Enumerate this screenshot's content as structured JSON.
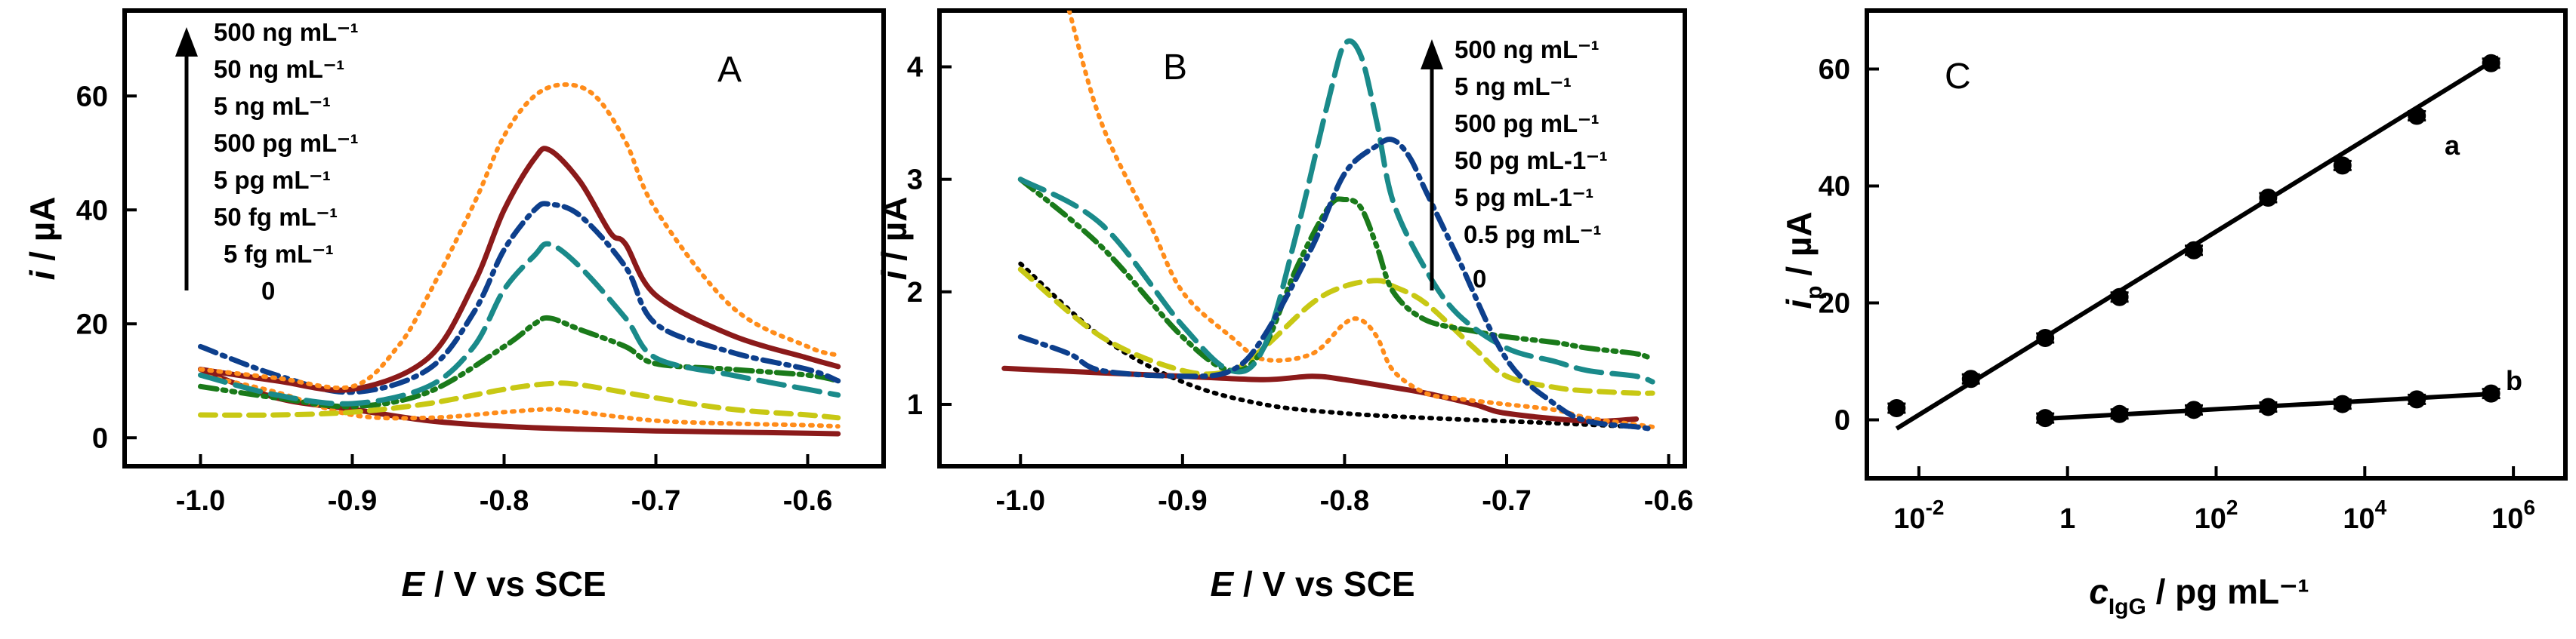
{
  "figure": {
    "colors": {
      "c0": "#000000",
      "c5fg": "#8b1a1a",
      "c50fg": "#ff8c1a",
      "c5pg": "#c8c814",
      "c500pg": "#1a7a1a",
      "c5ng": "#1a8a8a",
      "c50ng": "#0d3f8c",
      "c500ng": "#ff8c1a",
      "bPointFive": "#000000"
    }
  },
  "chart_data": [
    {
      "id": "A",
      "type": "line",
      "panel_label": "A",
      "xlabel_italic": "E",
      "xlabel_rest": " / V vs SCE",
      "ylabel_italic": "i",
      "ylabel_rest": " / µA",
      "xlim": [
        -1.05,
        -0.55
      ],
      "ylim": [
        -5,
        75
      ],
      "xticks": [
        -1.0,
        -0.9,
        -0.8,
        -0.7,
        -0.6
      ],
      "xtick_labels": [
        "-1.0",
        "-0.9",
        "-0.8",
        "-0.7",
        "-0.6"
      ],
      "yticks": [
        0,
        20,
        40,
        60
      ],
      "ytick_labels": [
        "0",
        "20",
        "40",
        "60"
      ],
      "legend": [
        "500 ng mL⁻¹",
        "50 ng mL⁻¹",
        "5 ng mL⁻¹",
        "500 pg mL⁻¹",
        "5 pg mL⁻¹",
        "50 fg mL⁻¹",
        "5 fg mL⁻¹",
        "0"
      ],
      "series": [
        {
          "name": "0",
          "style": "solid",
          "color_key": "c5fg",
          "x": [
            -1.0,
            -0.95,
            -0.9,
            -0.85,
            -0.8,
            -0.75,
            -0.7,
            -0.65,
            -0.6,
            -0.58
          ],
          "y": [
            12,
            7,
            5,
            3,
            2,
            1.5,
            1.2,
            1,
            0.8,
            0.7
          ]
        },
        {
          "name": "5 fg mL⁻¹",
          "style": "dot",
          "color_key": "c50fg",
          "x": [
            -1.0,
            -0.95,
            -0.9,
            -0.85,
            -0.8,
            -0.77,
            -0.75,
            -0.7,
            -0.65,
            -0.6,
            -0.58
          ],
          "y": [
            11,
            8,
            4,
            3.5,
            4.5,
            5,
            4.5,
            3,
            2.5,
            2.2,
            2
          ]
        },
        {
          "name": "50 fg mL⁻¹",
          "style": "dash",
          "color_key": "c5pg",
          "x": [
            -1.0,
            -0.95,
            -0.9,
            -0.85,
            -0.8,
            -0.77,
            -0.75,
            -0.7,
            -0.65,
            -0.6,
            -0.58
          ],
          "y": [
            4,
            4,
            4.5,
            6,
            8.5,
            9.5,
            9.3,
            7,
            5,
            4,
            3.5
          ]
        },
        {
          "name": "5 pg mL⁻¹",
          "style": "dashdotdot",
          "color_key": "c500pg",
          "x": [
            -1.0,
            -0.95,
            -0.9,
            -0.85,
            -0.8,
            -0.78,
            -0.77,
            -0.75,
            -0.72,
            -0.7,
            -0.65,
            -0.6,
            -0.58
          ],
          "y": [
            9,
            7,
            5.5,
            8,
            16,
            20,
            21,
            19,
            16,
            13,
            12,
            11,
            10
          ]
        },
        {
          "name": "500 pg mL⁻¹",
          "style": "longdash",
          "color_key": "c5ng",
          "x": [
            -1.0,
            -0.95,
            -0.9,
            -0.85,
            -0.82,
            -0.8,
            -0.78,
            -0.77,
            -0.75,
            -0.72,
            -0.7,
            -0.65,
            -0.6,
            -0.58
          ],
          "y": [
            11,
            7.5,
            6,
            9,
            16,
            26,
            32,
            34,
            30,
            21,
            14,
            11,
            8.5,
            7.5
          ]
        },
        {
          "name": "5 ng mL⁻¹",
          "style": "dashdot",
          "color_key": "c50ng",
          "x": [
            -1.0,
            -0.95,
            -0.9,
            -0.85,
            -0.82,
            -0.8,
            -0.78,
            -0.77,
            -0.75,
            -0.72,
            -0.7,
            -0.65,
            -0.6,
            -0.58
          ],
          "y": [
            16,
            11,
            8,
            12,
            22,
            33,
            40,
            41,
            39,
            30,
            20,
            15,
            12,
            10
          ]
        },
        {
          "name": "50 ng mL⁻¹",
          "style": "solid",
          "color_key": "c5fg",
          "x": [
            -1.0,
            -0.95,
            -0.9,
            -0.85,
            -0.82,
            -0.8,
            -0.78,
            -0.77,
            -0.75,
            -0.73,
            -0.72,
            -0.7,
            -0.65,
            -0.6,
            -0.58
          ],
          "y": [
            12,
            10,
            8.5,
            14,
            27,
            40,
            49,
            50.5,
            45,
            36,
            34,
            25,
            18,
            14,
            12.5
          ]
        },
        {
          "name": "500 ng mL⁻¹",
          "style": "dot",
          "color_key": "c500ng",
          "x": [
            -1.0,
            -0.95,
            -0.9,
            -0.87,
            -0.85,
            -0.82,
            -0.8,
            -0.78,
            -0.76,
            -0.74,
            -0.72,
            -0.7,
            -0.65,
            -0.6,
            -0.58
          ],
          "y": [
            12,
            10.5,
            9,
            16,
            25,
            41,
            53,
            60,
            62,
            60,
            52,
            40,
            23,
            16,
            14.5
          ]
        }
      ]
    },
    {
      "id": "B",
      "type": "line",
      "panel_label": "B",
      "xlabel_italic": "E",
      "xlabel_rest": " / V vs SCE",
      "ylabel_italic": "i",
      "ylabel_rest": " / µA",
      "xlim": [
        -1.05,
        -0.59
      ],
      "ylim": [
        0.45,
        4.5
      ],
      "xticks": [
        -1.0,
        -0.9,
        -0.8,
        -0.7,
        -0.6
      ],
      "xtick_labels": [
        "-1.0",
        "-0.9",
        "-0.8",
        "-0.7",
        "-0.6"
      ],
      "yticks": [
        1,
        2,
        3,
        4
      ],
      "ytick_labels": [
        "1",
        "2",
        "3",
        "4"
      ],
      "legend": [
        "500 ng mL⁻¹",
        "5 ng mL⁻¹",
        "500 pg mL⁻¹",
        "50 pg mL-1⁻¹",
        "5 pg mL-1⁻¹",
        "0.5 pg mL⁻¹",
        "0"
      ],
      "series": [
        {
          "name": "0",
          "style": "dot",
          "color_key": "bPointFive",
          "x": [
            -1.0,
            -0.95,
            -0.9,
            -0.85,
            -0.8,
            -0.75,
            -0.7,
            -0.65,
            -0.62
          ],
          "y": [
            2.25,
            1.6,
            1.2,
            1.0,
            0.92,
            0.88,
            0.85,
            0.82,
            0.8
          ]
        },
        {
          "name": "0.5 pg mL⁻¹",
          "style": "solid",
          "color_key": "c5fg",
          "x": [
            -1.01,
            -0.95,
            -0.9,
            -0.85,
            -0.82,
            -0.8,
            -0.77,
            -0.75,
            -0.72,
            -0.7,
            -0.65,
            -0.62
          ],
          "y": [
            1.32,
            1.28,
            1.25,
            1.22,
            1.25,
            1.22,
            1.15,
            1.1,
            1.0,
            0.92,
            0.85,
            0.87
          ]
        },
        {
          "name": "5 pg mL-1⁻¹",
          "style": "dot",
          "color_key": "c500ng",
          "x": [
            -0.97,
            -0.95,
            -0.92,
            -0.9,
            -0.87,
            -0.85,
            -0.82,
            -0.8,
            -0.79,
            -0.78,
            -0.77,
            -0.75,
            -0.73,
            -0.7,
            -0.67,
            -0.65,
            -0.62,
            -0.61
          ],
          "y": [
            4.5,
            3.5,
            2.6,
            2.0,
            1.6,
            1.4,
            1.45,
            1.72,
            1.75,
            1.6,
            1.3,
            1.1,
            1.05,
            1.0,
            0.95,
            0.88,
            0.82,
            0.8
          ]
        },
        {
          "name": "50 pg mL-1⁻¹",
          "style": "dash",
          "color_key": "c5pg",
          "x": [
            -1.0,
            -0.95,
            -0.9,
            -0.87,
            -0.85,
            -0.82,
            -0.8,
            -0.78,
            -0.77,
            -0.75,
            -0.72,
            -0.7,
            -0.67,
            -0.65,
            -0.62,
            -0.61
          ],
          "y": [
            2.2,
            1.6,
            1.3,
            1.3,
            1.5,
            1.9,
            2.05,
            2.1,
            2.05,
            1.9,
            1.5,
            1.25,
            1.15,
            1.12,
            1.1,
            1.1
          ]
        },
        {
          "name": "500 pg mL⁻¹",
          "style": "dashdotdot",
          "color_key": "c500pg",
          "x": [
            -1.0,
            -0.95,
            -0.9,
            -0.87,
            -0.85,
            -0.83,
            -0.81,
            -0.8,
            -0.79,
            -0.78,
            -0.77,
            -0.75,
            -0.72,
            -0.7,
            -0.67,
            -0.65,
            -0.62,
            -0.61
          ],
          "y": [
            3.0,
            2.4,
            1.6,
            1.3,
            1.5,
            2.2,
            2.75,
            2.82,
            2.75,
            2.4,
            2.0,
            1.75,
            1.65,
            1.6,
            1.55,
            1.5,
            1.45,
            1.4
          ]
        },
        {
          "name": "5 ng mL⁻¹",
          "style": "longdash",
          "color_key": "c5ng",
          "x": [
            -1.0,
            -0.95,
            -0.9,
            -0.87,
            -0.85,
            -0.83,
            -0.81,
            -0.8,
            -0.79,
            -0.78,
            -0.77,
            -0.75,
            -0.73,
            -0.7,
            -0.67,
            -0.65,
            -0.62,
            -0.61
          ],
          "y": [
            3.0,
            2.6,
            1.7,
            1.3,
            1.5,
            2.5,
            3.7,
            4.2,
            4.1,
            3.5,
            2.8,
            2.2,
            1.8,
            1.5,
            1.38,
            1.3,
            1.25,
            1.2
          ]
        },
        {
          "name": "500 ng mL⁻¹",
          "style": "dashdot",
          "color_key": "c50ng",
          "x": [
            -1.0,
            -0.97,
            -0.95,
            -0.9,
            -0.87,
            -0.85,
            -0.82,
            -0.8,
            -0.78,
            -0.77,
            -0.76,
            -0.75,
            -0.73,
            -0.7,
            -0.67,
            -0.65,
            -0.62,
            -0.61
          ],
          "y": [
            1.6,
            1.45,
            1.3,
            1.25,
            1.3,
            1.6,
            2.4,
            3.05,
            3.3,
            3.35,
            3.2,
            2.9,
            2.3,
            1.4,
            1.0,
            0.85,
            0.8,
            0.78
          ]
        }
      ]
    },
    {
      "id": "C",
      "type": "scatter",
      "panel_label": "C",
      "xlabel_italic": "c",
      "xlabel_sub": "IgG",
      "xlabel_rest": " / pg mL⁻¹",
      "ylabel_italic": "i",
      "ylabel_sub": "p",
      "ylabel_rest": " / µA",
      "x_scale": "log10",
      "xlim_log10": [
        -2.7,
        6.7
      ],
      "ylim": [
        -10,
        70
      ],
      "xtick_log10": [
        -2,
        0,
        2,
        4,
        6
      ],
      "xtick_labels": [
        {
          "base": "10",
          "exp": "-2"
        },
        {
          "base": "1",
          "exp": ""
        },
        {
          "base": "10",
          "exp": "2"
        },
        {
          "base": "10",
          "exp": "4"
        },
        {
          "base": "10",
          "exp": "6"
        }
      ],
      "yticks": [
        0,
        20,
        40,
        60
      ],
      "ytick_labels": [
        "0",
        "20",
        "40",
        "60"
      ],
      "series": [
        {
          "name": "a",
          "marker": "circle",
          "log10_x": [
            -2.3,
            -1.3,
            -0.3,
            0.7,
            1.7,
            2.7,
            3.7,
            4.7,
            5.7
          ],
          "y": [
            2,
            7,
            14,
            21,
            29,
            38,
            43.5,
            52,
            61
          ],
          "fit_log10_x": [
            -2.3,
            5.8
          ],
          "fit_y": [
            -1.5,
            62
          ]
        },
        {
          "name": "b",
          "marker": "circle",
          "log10_x": [
            -0.3,
            0.7,
            1.7,
            2.7,
            3.7,
            4.7,
            5.7
          ],
          "y": [
            0.3,
            1.0,
            1.7,
            2.2,
            2.7,
            3.5,
            4.5
          ],
          "fit_log10_x": [
            -0.3,
            5.8
          ],
          "fit_y": [
            0.2,
            4.5
          ]
        }
      ]
    }
  ]
}
